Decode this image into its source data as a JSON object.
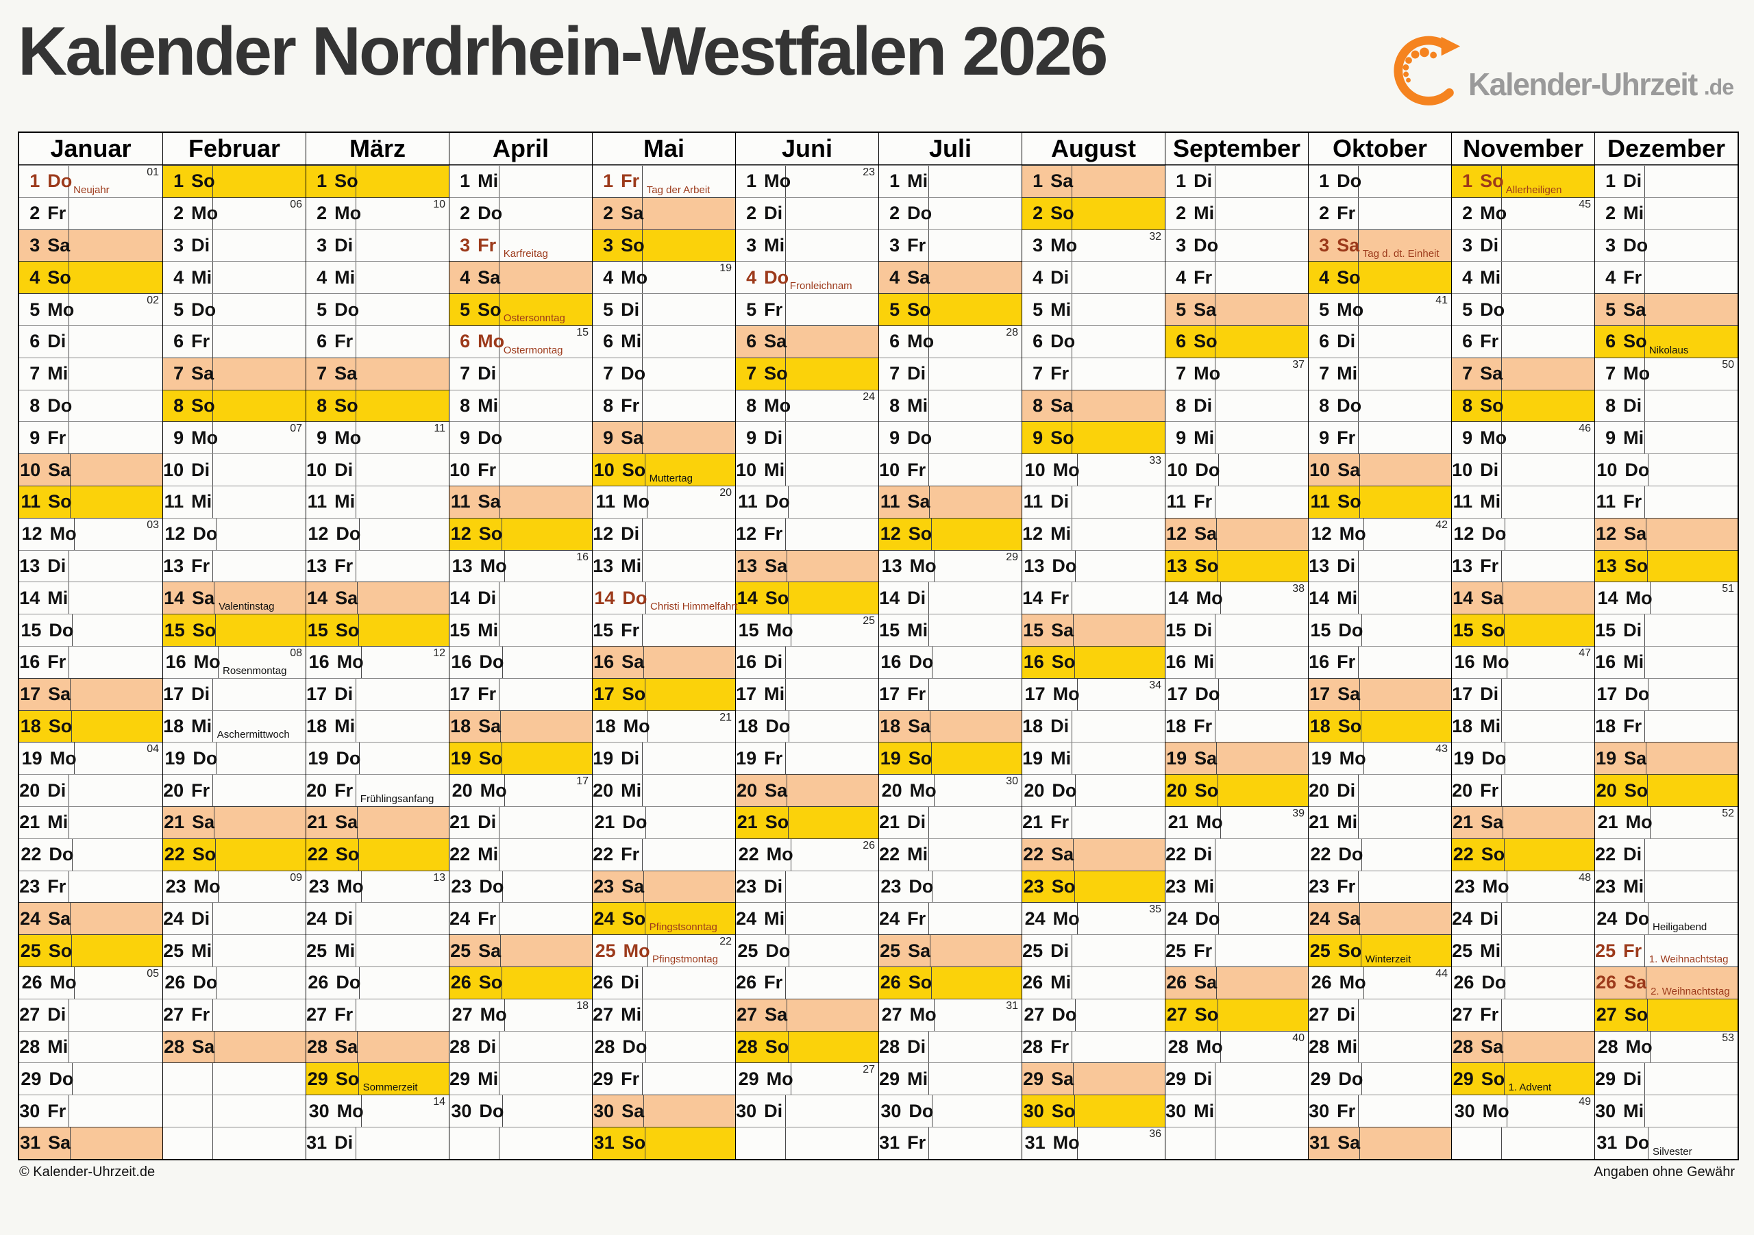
{
  "title": "Kalender Nordrhein-Westfalen 2026",
  "logo": {
    "name": "Kalender-Uhrzeit",
    "tld": ".de"
  },
  "footer": {
    "left": "© Kalender-Uhrzeit.de",
    "right": "Angaben ohne Gewähr"
  },
  "weekdays": [
    "Mo",
    "Di",
    "Mi",
    "Do",
    "Fr",
    "Sa",
    "So"
  ],
  "colors": {
    "sunday_bg": "#FBD20A",
    "saturday_bg": "#F9C799",
    "holiday_text": "#9C3A1B",
    "logo_orange": "#F5831F",
    "logo_gray": "#9A9A9A",
    "title_text": "#343434"
  },
  "row_count": 31,
  "months": [
    {
      "name": "Januar",
      "days": 31,
      "start": "Do",
      "weeks": {
        "1": "01",
        "5": "02",
        "12": "03",
        "19": "04",
        "26": "05"
      },
      "events": [
        {
          "day": 1,
          "label": "Neujahr",
          "red": true,
          "red_day": true
        }
      ]
    },
    {
      "name": "Februar",
      "days": 28,
      "start": "So",
      "weeks": {
        "2": "06",
        "9": "07",
        "16": "08",
        "23": "09"
      },
      "events": [
        {
          "day": 14,
          "label": "Valentinstag",
          "red": false
        },
        {
          "day": 16,
          "label": "Rosenmontag",
          "red": false
        },
        {
          "day": 18,
          "label": "Aschermittwoch",
          "red": false
        }
      ]
    },
    {
      "name": "März",
      "days": 31,
      "start": "So",
      "weeks": {
        "2": "10",
        "9": "11",
        "16": "12",
        "23": "13",
        "30": "14"
      },
      "events": [
        {
          "day": 20,
          "label": "Frühlingsanfang",
          "red": false
        },
        {
          "day": 29,
          "label": "Sommerzeit",
          "red": false
        }
      ]
    },
    {
      "name": "April",
      "days": 30,
      "start": "Mi",
      "weeks": {
        "6": "15",
        "13": "16",
        "20": "17",
        "27": "18"
      },
      "events": [
        {
          "day": 3,
          "label": "Karfreitag",
          "red": true,
          "red_day": true
        },
        {
          "day": 5,
          "label": "Ostersonntag",
          "red": true
        },
        {
          "day": 6,
          "label": "Ostermontag",
          "red": true,
          "red_day": true
        }
      ]
    },
    {
      "name": "Mai",
      "days": 31,
      "start": "Fr",
      "weeks": {
        "4": "19",
        "11": "20",
        "18": "21",
        "25": "22"
      },
      "events": [
        {
          "day": 1,
          "label": "Tag der Arbeit",
          "red": true,
          "red_day": true
        },
        {
          "day": 10,
          "label": "Muttertag",
          "red": false
        },
        {
          "day": 14,
          "label": "Christi Himmelfahrt",
          "red": true,
          "red_day": true
        },
        {
          "day": 24,
          "label": "Pfingstsonntag",
          "red": true
        },
        {
          "day": 25,
          "label": "Pfingstmontag",
          "red": true,
          "red_day": true
        }
      ]
    },
    {
      "name": "Juni",
      "days": 30,
      "start": "Mo",
      "weeks": {
        "1": "23",
        "8": "24",
        "15": "25",
        "22": "26",
        "29": "27"
      },
      "events": [
        {
          "day": 4,
          "label": "Fronleichnam",
          "red": true,
          "red_day": true
        }
      ]
    },
    {
      "name": "Juli",
      "days": 31,
      "start": "Mi",
      "weeks": {
        "6": "28",
        "13": "29",
        "20": "30",
        "27": "31"
      },
      "events": []
    },
    {
      "name": "August",
      "days": 31,
      "start": "Sa",
      "weeks": {
        "3": "32",
        "10": "33",
        "17": "34",
        "24": "35",
        "31": "36"
      },
      "events": []
    },
    {
      "name": "September",
      "days": 30,
      "start": "Di",
      "weeks": {
        "7": "37",
        "14": "38",
        "21": "39",
        "28": "40"
      },
      "events": []
    },
    {
      "name": "Oktober",
      "days": 31,
      "start": "Do",
      "weeks": {
        "5": "41",
        "12": "42",
        "19": "43",
        "26": "44"
      },
      "events": [
        {
          "day": 3,
          "label": "Tag d. dt. Einheit",
          "red": true,
          "red_day": true
        },
        {
          "day": 25,
          "label": "Winterzeit",
          "red": false
        }
      ]
    },
    {
      "name": "November",
      "days": 30,
      "start": "So",
      "weeks": {
        "2": "45",
        "9": "46",
        "16": "47",
        "23": "48",
        "30": "49"
      },
      "events": [
        {
          "day": 1,
          "label": "Allerheiligen",
          "red": true,
          "red_day": true
        },
        {
          "day": 29,
          "label": "1. Advent",
          "red": false
        }
      ]
    },
    {
      "name": "Dezember",
      "days": 31,
      "start": "Di",
      "weeks": {
        "7": "50",
        "14": "51",
        "21": "52",
        "28": "53"
      },
      "events": [
        {
          "day": 6,
          "label": "Nikolaus",
          "red": false
        },
        {
          "day": 24,
          "label": "Heiligabend",
          "red": false
        },
        {
          "day": 25,
          "label": "1. Weihnachtstag",
          "red": true,
          "red_day": true
        },
        {
          "day": 26,
          "label": "2. Weihnachtstag",
          "red": true,
          "red_day": true
        },
        {
          "day": 31,
          "label": "Silvester",
          "red": false
        }
      ]
    }
  ]
}
